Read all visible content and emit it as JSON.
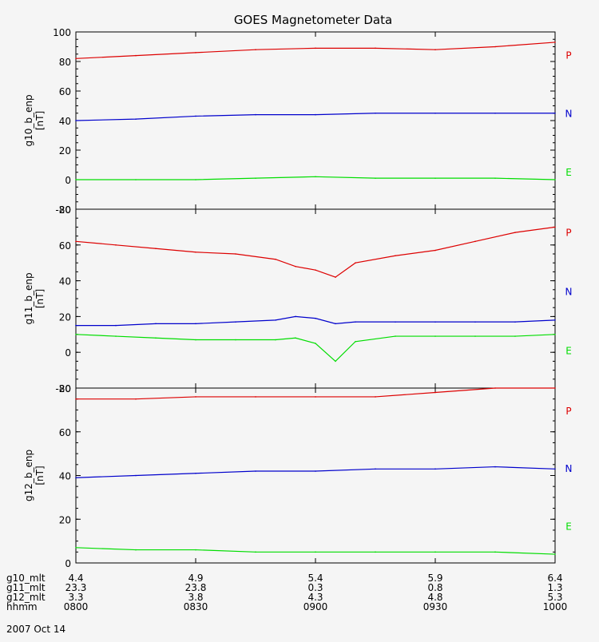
{
  "title": "GOES Magnetometer Data",
  "x_ticks": [
    "0800",
    "0830",
    "0900",
    "0930",
    "1000"
  ],
  "date": "2007 Oct 14",
  "mlt_rows": [
    {
      "label": "g10_mlt",
      "values": [
        "4.4",
        "4.9",
        "5.4",
        "5.9",
        "6.4"
      ]
    },
    {
      "label": "g11_mlt",
      "values": [
        "23.3",
        "23.8",
        "0.3",
        "0.8",
        "1.3"
      ]
    },
    {
      "label": "g12_mlt",
      "values": [
        "3.3",
        "3.8",
        "4.3",
        "4.8",
        "5.3"
      ]
    },
    {
      "label": "hhmm",
      "values": [
        "0800",
        "0830",
        "0900",
        "0930",
        "1000"
      ]
    }
  ],
  "colors": {
    "P": "#dd0000",
    "N": "#0000cc",
    "E": "#00dd00",
    "axis": "#000000"
  },
  "chart_data": [
    {
      "type": "line",
      "ylabel": "g10_b_enp\n[nT]",
      "ylim": [
        -20,
        100
      ],
      "yticks": [
        -20,
        0,
        20,
        40,
        60,
        80,
        100
      ],
      "x": [
        "0800",
        "0815",
        "0830",
        "0845",
        "0900",
        "0915",
        "0930",
        "0945",
        "1000"
      ],
      "series": [
        {
          "name": "P",
          "values": [
            82,
            84,
            86,
            88,
            89,
            89,
            88,
            90,
            93
          ]
        },
        {
          "name": "N",
          "values": [
            40,
            41,
            43,
            44,
            44,
            45,
            45,
            45,
            45
          ]
        },
        {
          "name": "E",
          "values": [
            0,
            0,
            0,
            1,
            2,
            1,
            1,
            1,
            0
          ]
        }
      ]
    },
    {
      "type": "line",
      "ylabel": "g11_b_enp\n[nT]",
      "ylim": [
        -20,
        80
      ],
      "yticks": [
        -20,
        0,
        20,
        40,
        60,
        80
      ],
      "x": [
        "0800",
        "0810",
        "0820",
        "0830",
        "0840",
        "0850",
        "0855",
        "0900",
        "0905",
        "0910",
        "0920",
        "0930",
        "0940",
        "0950",
        "1000"
      ],
      "series": [
        {
          "name": "P",
          "values": [
            62,
            60,
            58,
            56,
            55,
            52,
            48,
            46,
            42,
            50,
            54,
            57,
            62,
            67,
            70
          ]
        },
        {
          "name": "N",
          "values": [
            15,
            15,
            16,
            16,
            17,
            18,
            20,
            19,
            16,
            17,
            17,
            17,
            17,
            17,
            18
          ]
        },
        {
          "name": "E",
          "values": [
            10,
            9,
            8,
            7,
            7,
            7,
            8,
            5,
            -5,
            6,
            9,
            9,
            9,
            9,
            10
          ]
        }
      ]
    },
    {
      "type": "line",
      "ylabel": "g12_b_enp\n[nT]",
      "ylim": [
        0,
        80
      ],
      "yticks": [
        0,
        20,
        40,
        60,
        80
      ],
      "x": [
        "0800",
        "0815",
        "0830",
        "0845",
        "0900",
        "0915",
        "0930",
        "0945",
        "1000"
      ],
      "series": [
        {
          "name": "P",
          "values": [
            75,
            75,
            76,
            76,
            76,
            76,
            78,
            80,
            80
          ]
        },
        {
          "name": "N",
          "values": [
            39,
            40,
            41,
            42,
            42,
            43,
            43,
            44,
            43
          ]
        },
        {
          "name": "E",
          "values": [
            7,
            6,
            6,
            5,
            5,
            5,
            5,
            5,
            4
          ]
        }
      ]
    }
  ]
}
